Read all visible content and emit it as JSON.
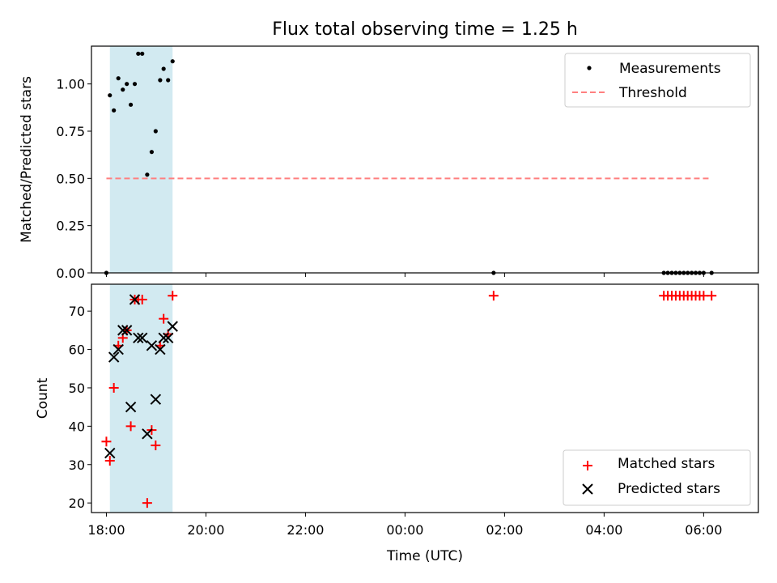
{
  "title": "Flux total observing time = 1.25 h",
  "colors": {
    "shade": "#add8e6",
    "threshold": "#ff7f7f",
    "matched": "#ff0000",
    "predicted": "#000000",
    "measurement": "#000000"
  },
  "chart_data": [
    {
      "type": "scatter",
      "ylabel": "Matched/Predicted stars",
      "xlabel": "",
      "xlim": [
        -0.3,
        13.1
      ],
      "ylim": [
        0,
        1.2
      ],
      "yticks": [
        0.0,
        0.25,
        0.5,
        0.75,
        1.0
      ],
      "ytick_labels": [
        "0.00",
        "0.25",
        "0.50",
        "0.75",
        "1.00"
      ],
      "shaded_span_hours": [
        0.07,
        1.33
      ],
      "legend_position": "top-right",
      "series": [
        {
          "name": "Measurements",
          "marker": "dot",
          "x_hours": [
            0.0,
            0.07,
            0.15,
            0.24,
            0.33,
            0.41,
            0.49,
            0.57,
            0.64,
            0.72,
            0.82,
            0.91,
            0.99,
            1.08,
            1.15,
            1.24,
            1.33,
            7.78,
            11.2,
            11.28,
            11.36,
            11.44,
            11.52,
            11.6,
            11.68,
            11.76,
            11.84,
            11.92,
            12.0,
            12.16
          ],
          "y": [
            0.0,
            0.94,
            0.86,
            1.03,
            0.97,
            1.0,
            0.89,
            1.0,
            1.16,
            1.16,
            0.52,
            0.64,
            0.75,
            1.02,
            1.08,
            1.02,
            1.12,
            0.0,
            0.0,
            0.0,
            0.0,
            0.0,
            0.0,
            0.0,
            0.0,
            0.0,
            0.0,
            0.0,
            0.0,
            0.0
          ]
        },
        {
          "name": "Threshold",
          "line": "dashed",
          "x_hours": [
            0.0,
            12.16
          ],
          "y": [
            0.5,
            0.5
          ]
        }
      ]
    },
    {
      "type": "scatter",
      "ylabel": "Count",
      "xlabel": "Time (UTC)",
      "xlim": [
        -0.3,
        13.1
      ],
      "ylim": [
        17.5,
        77
      ],
      "yticks": [
        20,
        30,
        40,
        50,
        60,
        70
      ],
      "xticks_hours": [
        0,
        2,
        4,
        6,
        8,
        10,
        12
      ],
      "xtick_labels": [
        "18:00",
        "20:00",
        "22:00",
        "00:00",
        "02:00",
        "04:00",
        "06:00"
      ],
      "shaded_span_hours": [
        0.07,
        1.33
      ],
      "legend_position": "bottom-right",
      "series": [
        {
          "name": "Matched stars",
          "marker": "plus",
          "x_hours": [
            0.0,
            0.07,
            0.15,
            0.24,
            0.33,
            0.41,
            0.49,
            0.57,
            0.64,
            0.72,
            0.82,
            0.91,
            0.99,
            1.08,
            1.15,
            1.24,
            1.33,
            7.78,
            11.2,
            11.28,
            11.36,
            11.44,
            11.52,
            11.6,
            11.68,
            11.76,
            11.84,
            11.92,
            12.0,
            12.16
          ],
          "y": [
            36,
            31,
            50,
            61,
            63,
            65,
            40,
            73,
            73,
            73,
            20,
            39,
            35,
            61,
            68,
            64,
            74,
            74,
            74,
            74,
            74,
            74,
            74,
            74,
            74,
            74,
            74,
            74,
            74,
            74
          ]
        },
        {
          "name": "Predicted stars",
          "marker": "x",
          "x_hours": [
            0.07,
            0.15,
            0.24,
            0.33,
            0.41,
            0.49,
            0.57,
            0.64,
            0.72,
            0.82,
            0.91,
            0.99,
            1.08,
            1.15,
            1.24,
            1.33
          ],
          "y": [
            33,
            58,
            60,
            65,
            65,
            45,
            73,
            63,
            63,
            38,
            61,
            47,
            60,
            63,
            63,
            66
          ]
        }
      ]
    }
  ]
}
